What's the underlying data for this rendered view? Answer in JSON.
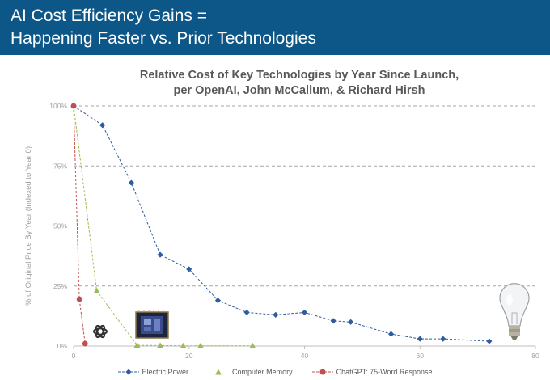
{
  "header": {
    "title_line1": "AI Cost Efficiency Gains =",
    "title_line2": "Happening Faster vs. Prior Technologies"
  },
  "chart_data": {
    "type": "line",
    "title_line1": "Relative Cost of Key Technologies by Year Since Launch,",
    "title_line2": "per OpenAI, John McCallum, & Richard Hirsh",
    "ylabel": "% of Original Price By Year (Indexed to Year 0)",
    "xlabel": "",
    "xlim": [
      0,
      80
    ],
    "ylim": [
      0,
      100
    ],
    "x_ticks": [
      0,
      20,
      40,
      60,
      80
    ],
    "y_ticks": [
      0,
      25,
      50,
      75,
      100
    ],
    "y_tick_labels": [
      "0%",
      "25%",
      "50%",
      "75%",
      "100%"
    ],
    "grid": true,
    "legend_position": "bottom",
    "series": [
      {
        "name": "Electric Power",
        "color": "#2e5d9f",
        "marker": "diamond",
        "points": [
          [
            0,
            100
          ],
          [
            5,
            92
          ],
          [
            10,
            68
          ],
          [
            15,
            38
          ],
          [
            20,
            32
          ],
          [
            25,
            19
          ],
          [
            30,
            14
          ],
          [
            35,
            13
          ],
          [
            40,
            14
          ],
          [
            45,
            10.5
          ],
          [
            48,
            10
          ],
          [
            55,
            5
          ],
          [
            60,
            3
          ],
          [
            64,
            3
          ],
          [
            72,
            2
          ]
        ]
      },
      {
        "name": "Computer Memory",
        "color": "#9bbb59",
        "marker": "triangle",
        "points": [
          [
            0,
            100
          ],
          [
            4,
            23
          ],
          [
            11,
            0.3
          ],
          [
            15,
            0.2
          ],
          [
            19,
            0.1
          ],
          [
            22,
            0.1
          ],
          [
            31,
            0.1
          ]
        ]
      },
      {
        "name": "ChatGPT: 75-Word Response",
        "color": "#c0504d",
        "marker": "circle",
        "points": [
          [
            0,
            100
          ],
          [
            1,
            19.5
          ],
          [
            2,
            1
          ]
        ]
      }
    ]
  }
}
